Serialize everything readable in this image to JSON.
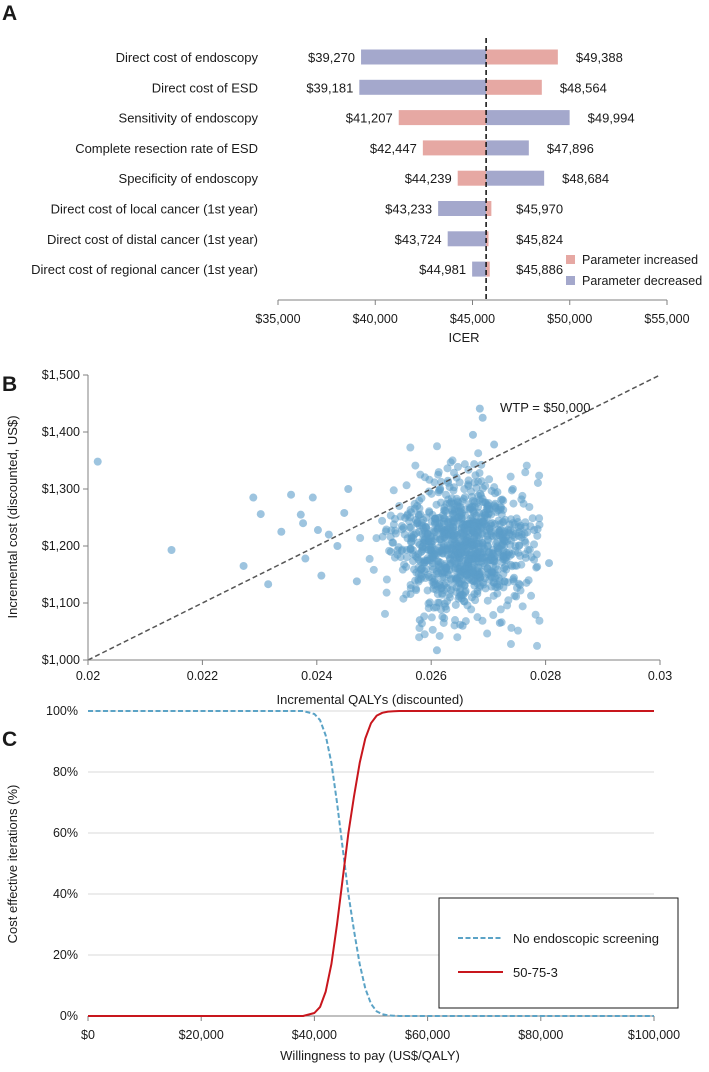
{
  "panels": {
    "a": "A",
    "b": "B",
    "c": "C"
  },
  "colors": {
    "increased": "#e6a8a3",
    "decreased": "#a4a8cc",
    "scatter": "#5b9cc9",
    "no_screening": "#5ba3c6",
    "screening_50_75_3": "#c8161d"
  },
  "chart_data": [
    {
      "type": "bar",
      "subtype": "tornado",
      "xlabel": "ICER",
      "xlim": [
        35000,
        55000
      ],
      "xticks": [
        35000,
        40000,
        45000,
        50000,
        55000
      ],
      "xtick_labels": [
        "$35,000",
        "$40,000",
        "$45,000",
        "$50,000",
        "$55,000"
      ],
      "base_value": 45700,
      "legend": [
        "Parameter increased",
        "Parameter decreased"
      ],
      "legend_position": "bottom-right",
      "categories": [
        "Direct cost of endoscopy",
        "Direct cost of ESD",
        "Sensitivity of endoscopy",
        "Complete resection rate of ESD",
        "Specificity of endoscopy",
        "Direct cost of local cancer (1st year)",
        "Direct cost of distal cancer (1st year)",
        "Direct cost of regional cancer (1st year)"
      ],
      "low_values": [
        39270,
        39181,
        41207,
        42447,
        44239,
        43233,
        43724,
        44981
      ],
      "high_values": [
        49388,
        48564,
        49994,
        47896,
        48684,
        45970,
        45824,
        45886
      ],
      "low_labels": [
        "$39,270",
        "$39,181",
        "$41,207",
        "$42,447",
        "$44,239",
        "$43,233",
        "$43,724",
        "$44,981"
      ],
      "high_labels": [
        "$49,388",
        "$48,564",
        "$49,994",
        "$47,896",
        "$48,684",
        "$45,970",
        "$45,824",
        "$45,886"
      ],
      "low_side_parameter": [
        "decreased",
        "decreased",
        "increased",
        "increased",
        "increased",
        "decreased",
        "decreased",
        "decreased"
      ]
    },
    {
      "type": "scatter",
      "xlabel": "Incremental QALYs (discounted)",
      "ylabel": "Incremental cost (discounted, US$)",
      "xlim": [
        0.02,
        0.03
      ],
      "ylim": [
        1000,
        1500
      ],
      "xticks": [
        0.02,
        0.022,
        0.024,
        0.026,
        0.028,
        0.03
      ],
      "xtick_labels": [
        "0.02",
        "0.022",
        "0.024",
        "0.026",
        "0.028",
        "0.03"
      ],
      "yticks": [
        1000,
        1100,
        1200,
        1300,
        1400,
        1500
      ],
      "ytick_labels": [
        "$1,000",
        "$1,100",
        "$1,200",
        "$1,300",
        "$1,400",
        "$1,500"
      ],
      "wtp_label": "WTP = $50,000",
      "wtp": 50000,
      "cloud": {
        "n": 1000,
        "mean_x": 0.02655,
        "sd_x": 0.00058,
        "mean_y": 1200,
        "sd_y": 58
      },
      "points": [
        {
          "x": 0.02017,
          "y": 1348
        },
        {
          "x": 0.02146,
          "y": 1193
        },
        {
          "x": 0.02272,
          "y": 1165
        },
        {
          "x": 0.02289,
          "y": 1285
        },
        {
          "x": 0.02302,
          "y": 1256
        },
        {
          "x": 0.02315,
          "y": 1133
        },
        {
          "x": 0.02338,
          "y": 1225
        },
        {
          "x": 0.02355,
          "y": 1290
        },
        {
          "x": 0.02372,
          "y": 1255
        },
        {
          "x": 0.02376,
          "y": 1240
        },
        {
          "x": 0.0238,
          "y": 1178
        },
        {
          "x": 0.02393,
          "y": 1285
        },
        {
          "x": 0.02402,
          "y": 1228
        },
        {
          "x": 0.02408,
          "y": 1148
        },
        {
          "x": 0.02421,
          "y": 1220
        },
        {
          "x": 0.02436,
          "y": 1200
        },
        {
          "x": 0.02448,
          "y": 1258
        },
        {
          "x": 0.02455,
          "y": 1300
        },
        {
          "x": 0.0247,
          "y": 1138
        },
        {
          "x": 0.0261,
          "y": 1017
        },
        {
          "x": 0.02685,
          "y": 1441
        },
        {
          "x": 0.0269,
          "y": 1425
        },
        {
          "x": 0.02673,
          "y": 1395
        },
        {
          "x": 0.0271,
          "y": 1378
        },
        {
          "x": 0.02806,
          "y": 1170
        },
        {
          "x": 0.0278,
          "y": 1228
        },
        {
          "x": 0.02655,
          "y": 1060
        },
        {
          "x": 0.0272,
          "y": 1065
        },
        {
          "x": 0.0258,
          "y": 1070
        }
      ]
    },
    {
      "type": "line",
      "xlabel": "Willingness to pay (US$/QALY)",
      "ylabel": "Cost effective iterations (%)",
      "xlim": [
        0,
        100000
      ],
      "ylim": [
        0,
        100
      ],
      "xticks": [
        0,
        20000,
        40000,
        60000,
        80000,
        100000
      ],
      "xtick_labels": [
        "$0",
        "$20,000",
        "$40,000",
        "$60,000",
        "$80,000",
        "$100,000"
      ],
      "yticks": [
        0,
        20,
        40,
        60,
        80,
        100
      ],
      "ytick_labels": [
        "0%",
        "20%",
        "40%",
        "60%",
        "80%",
        "100%"
      ],
      "grid": true,
      "legend_position": "center-right",
      "x": [
        0,
        10000,
        20000,
        30000,
        38000,
        40000,
        41000,
        42000,
        43000,
        44000,
        45000,
        46000,
        47000,
        48000,
        49000,
        50000,
        51000,
        52000,
        53000,
        54000,
        55000,
        60000,
        70000,
        80000,
        90000,
        100000
      ],
      "series": [
        {
          "name": "No endoscopic screening",
          "style": "dashed",
          "values": [
            100,
            100,
            100,
            100,
            100,
            99,
            97,
            92,
            83,
            70,
            55,
            40,
            28,
            17,
            9,
            4,
            1.5,
            0.6,
            0.2,
            0.1,
            0,
            0,
            0,
            0,
            0,
            0
          ]
        },
        {
          "name": "50-75-3",
          "style": "solid",
          "values": [
            0,
            0,
            0,
            0,
            0,
            1,
            3,
            8,
            17,
            30,
            45,
            60,
            72,
            83,
            91,
            96,
            98.5,
            99.4,
            99.8,
            99.9,
            100,
            100,
            100,
            100,
            100,
            100
          ]
        }
      ]
    }
  ]
}
